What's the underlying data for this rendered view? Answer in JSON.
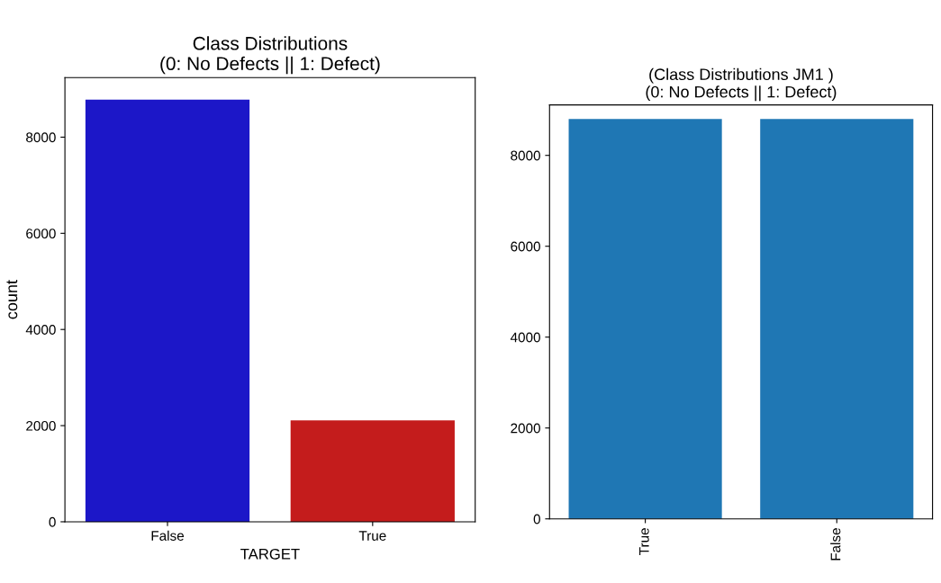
{
  "chart_data": [
    {
      "type": "bar",
      "title": "Class Distributions\n(0: No Defects || 1: Defect)",
      "xlabel": "TARGET",
      "ylabel": "count",
      "categories": [
        "False",
        "True"
      ],
      "values": [
        8780,
        2110
      ],
      "colors": [
        "#1c17c8",
        "#c41c1c"
      ],
      "ylim": [
        0,
        9240
      ],
      "yticks": [
        0,
        2000,
        4000,
        6000,
        8000
      ]
    },
    {
      "type": "bar",
      "title": "(Class Distributions JM1 )\n(0: No Defects || 1: Defect)",
      "categories": [
        "True",
        "False"
      ],
      "values": [
        8800,
        8800
      ],
      "colors": [
        "#1f77b4",
        "#1f77b4"
      ],
      "ylim": [
        0,
        9110
      ],
      "yticks": [
        0,
        2000,
        4000,
        6000,
        8000
      ]
    }
  ]
}
